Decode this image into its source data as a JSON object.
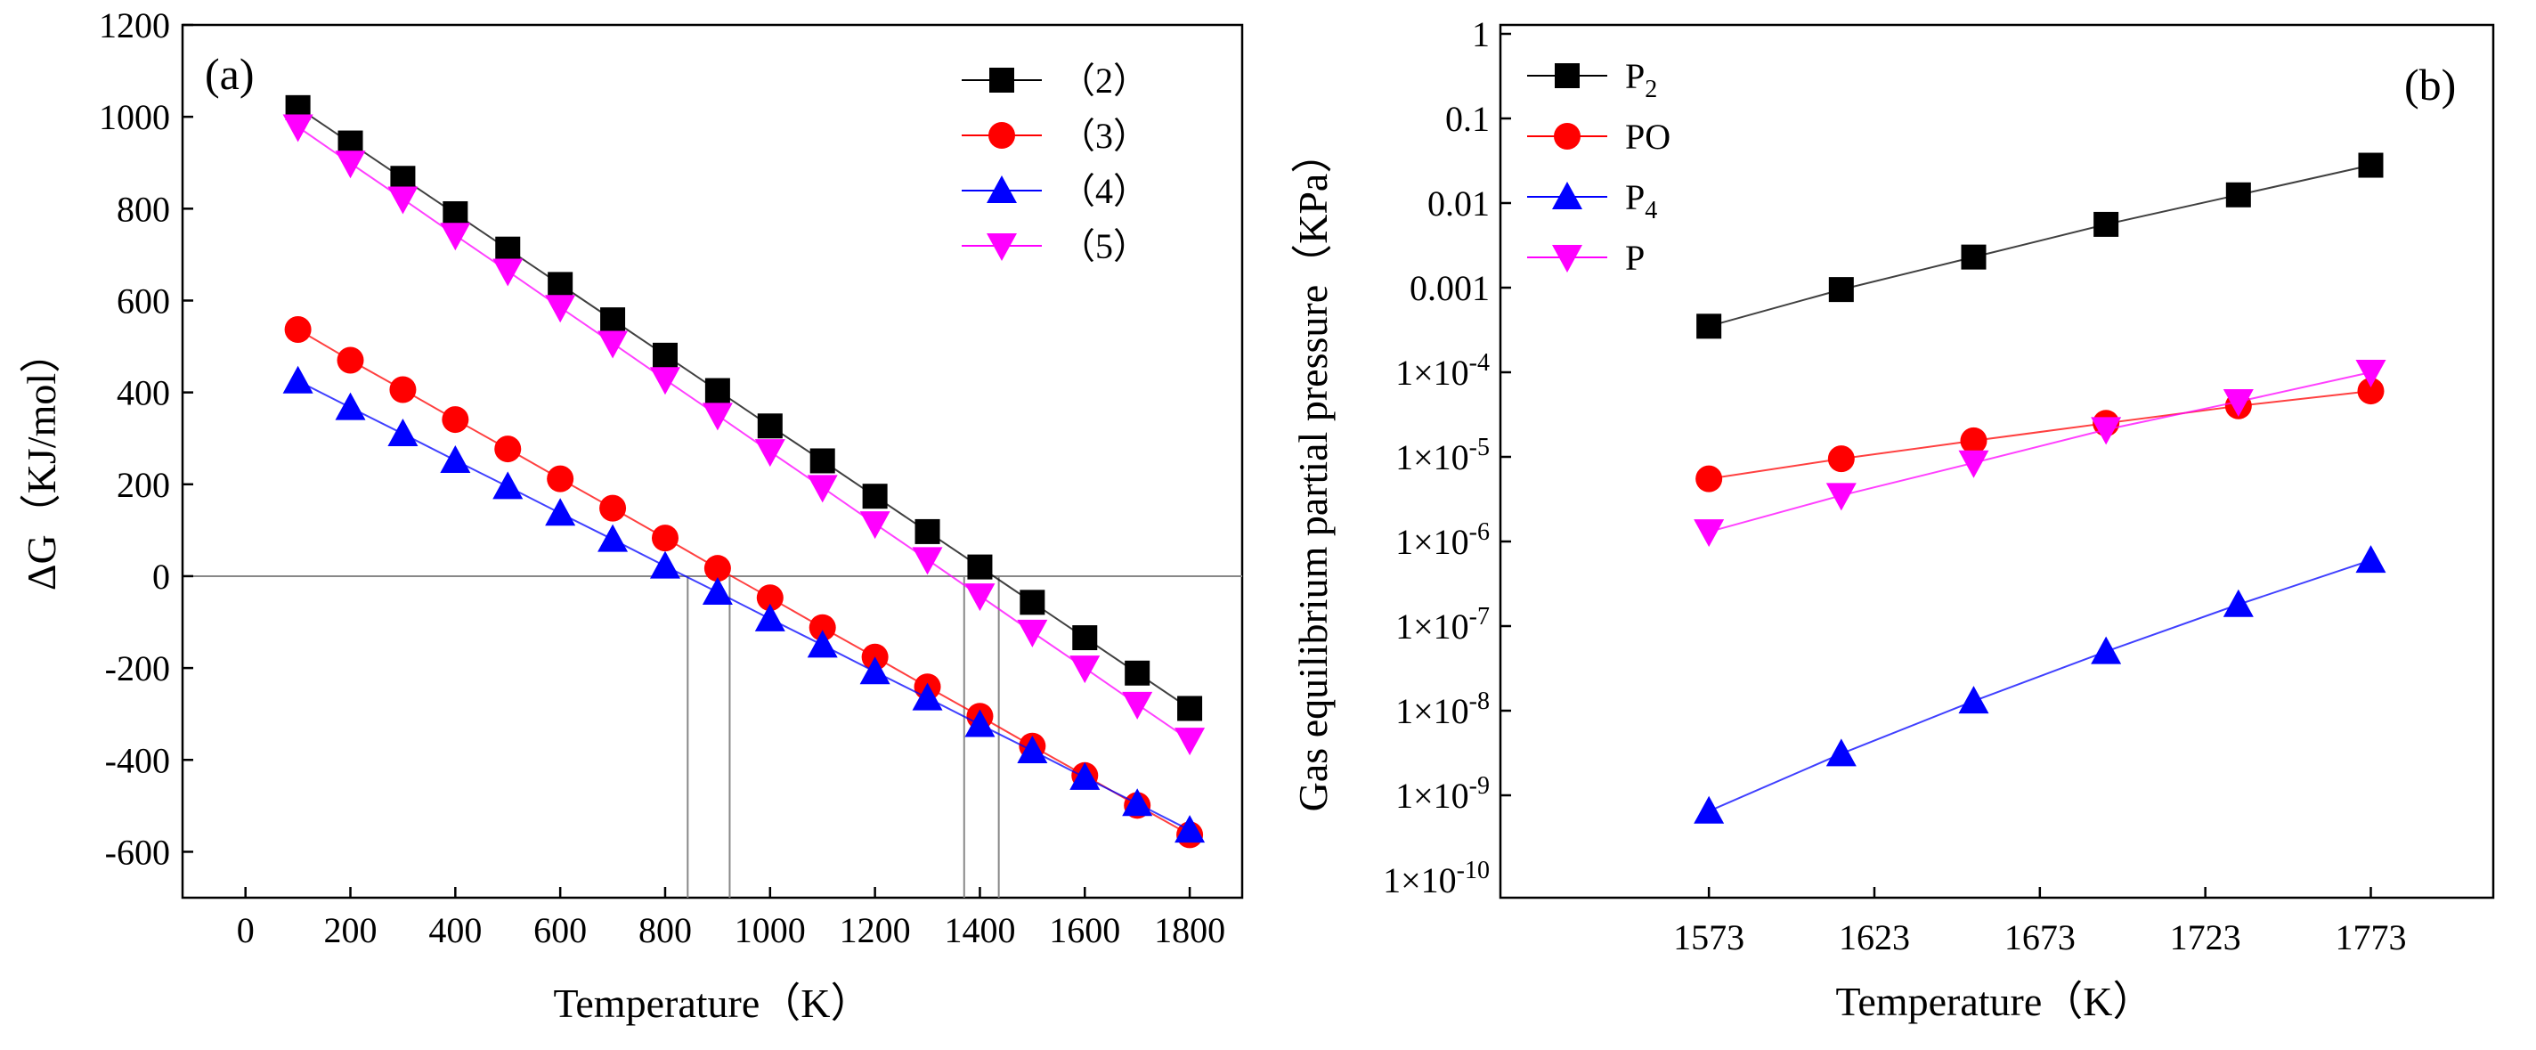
{
  "chart_data": [
    {
      "panel_label": "(a)",
      "type": "line",
      "xlabel": "Temperature（K）",
      "ylabel": "ΔG（KJ/mol）",
      "xlim": [
        -120,
        1900
      ],
      "ylim": [
        -700,
        1200
      ],
      "xticks": [
        "0",
        "200",
        "400",
        "600",
        "800",
        "1000",
        "1200",
        "1400",
        "1600",
        "1800"
      ],
      "xtick_values": [
        0,
        200,
        400,
        600,
        800,
        1000,
        1200,
        1400,
        1600,
        1800
      ],
      "yticks": [
        "-600",
        "-400",
        "-200",
        "0",
        "200",
        "400",
        "600",
        "800",
        "1000",
        "1200"
      ],
      "ytick_values": [
        -600,
        -400,
        -200,
        0,
        200,
        400,
        600,
        800,
        1000,
        1200
      ],
      "x": [
        100,
        200,
        300,
        400,
        500,
        600,
        700,
        800,
        900,
        1000,
        1100,
        1200,
        1300,
        1400,
        1500,
        1600,
        1700,
        1800
      ],
      "zero_line": 0,
      "reference_lines_x": [
        843,
        923,
        1370,
        1436
      ],
      "legend_position": "top-right",
      "series": [
        {
          "name": "（2）",
          "color": "#000000",
          "marker": "square",
          "values": [
            1020,
            943,
            866,
            789,
            712,
            635,
            558,
            481,
            404,
            327,
            251,
            174,
            97,
            20,
            -57,
            -134,
            -211,
            -288
          ]
        },
        {
          "name": "（3）",
          "color": "#ff0000",
          "marker": "circle",
          "values": [
            537,
            470,
            406,
            341,
            277,
            212,
            148,
            83,
            17,
            -47,
            -112,
            -176,
            -241,
            -305,
            -370,
            -434,
            -499,
            -563
          ]
        },
        {
          "name": "（4）",
          "color": "#0000ff",
          "marker": "triangle-up",
          "values": [
            425,
            367,
            310,
            252,
            195,
            137,
            80,
            22,
            -35,
            -93,
            -150,
            -208,
            -265,
            -323,
            -380,
            -438,
            -495,
            -553
          ]
        },
        {
          "name": "（5）",
          "color": "#ff00ff",
          "marker": "triangle-down",
          "values": [
            978,
            899,
            821,
            742,
            664,
            585,
            507,
            428,
            350,
            271,
            193,
            114,
            36,
            -43,
            -122,
            -200,
            -279,
            -357
          ]
        }
      ]
    },
    {
      "panel_label": "(b)",
      "type": "line",
      "yscale": "log",
      "xlabel": "Temperature（K）",
      "ylabel": "Gas equilibrium partial pressure（KPa）",
      "xlim": [
        1510,
        1810
      ],
      "ylim_log10": [
        -10,
        0
      ],
      "xticks": [
        "1573",
        "1623",
        "1673",
        "1723",
        "1773"
      ],
      "xtick_values": [
        1573,
        1623,
        1673,
        1723,
        1773
      ],
      "yticks": [
        {
          "value": 0,
          "mantissa": "1",
          "exponent": ""
        },
        {
          "value": -1,
          "mantissa": "0.1",
          "exponent": ""
        },
        {
          "value": -2,
          "mantissa": "0.01",
          "exponent": ""
        },
        {
          "value": -3,
          "mantissa": "0.001",
          "exponent": ""
        },
        {
          "value": -4,
          "mantissa": "1×10",
          "exponent": "-4"
        },
        {
          "value": -5,
          "mantissa": "1×10",
          "exponent": "-5"
        },
        {
          "value": -6,
          "mantissa": "1×10",
          "exponent": "-6"
        },
        {
          "value": -7,
          "mantissa": "1×10",
          "exponent": "-7"
        },
        {
          "value": -8,
          "mantissa": "1×10",
          "exponent": "-8"
        },
        {
          "value": -9,
          "mantissa": "1×10",
          "exponent": "-9"
        },
        {
          "value": -10,
          "mantissa": "1×10",
          "exponent": "-10"
        }
      ],
      "x": [
        1573,
        1613,
        1653,
        1693,
        1733,
        1773
      ],
      "legend_position": "top-left",
      "series": [
        {
          "name": "P",
          "subscript": "2",
          "color": "#000000",
          "marker": "square",
          "values": [
            0.00035,
            0.00095,
            0.0023,
            0.0056,
            0.0125,
            0.028
          ]
        },
        {
          "name": "PO",
          "subscript": "",
          "color": "#ff0000",
          "marker": "circle",
          "values": [
            5.5e-06,
            9.5e-06,
            1.55e-05,
            2.5e-05,
            4e-05,
            6e-05
          ]
        },
        {
          "name": "P",
          "subscript": "4",
          "color": "#0000ff",
          "marker": "triangle-up",
          "values": [
            6.5e-10,
            3.1e-09,
            1.3e-08,
            5e-08,
            1.8e-07,
            6e-07
          ]
        },
        {
          "name": "P",
          "subscript": "",
          "color": "#ff00ff",
          "marker": "triangle-down",
          "values": [
            1.3e-06,
            3.5e-06,
            8.5e-06,
            2.1e-05,
            4.5e-05,
            0.0001
          ]
        }
      ]
    }
  ]
}
